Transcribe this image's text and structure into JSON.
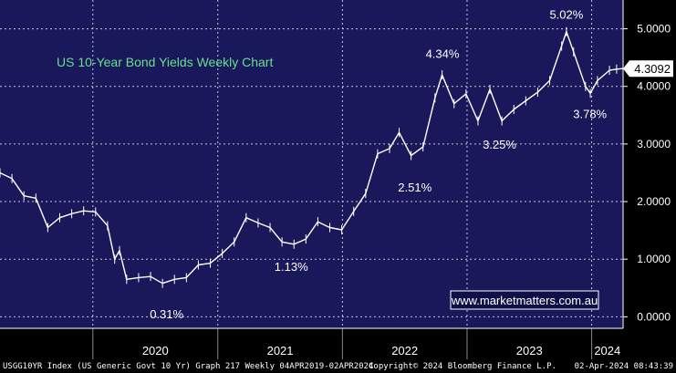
{
  "chart_data": {
    "type": "line",
    "title": "US 10-Year Bond Yields Weekly Chart",
    "watermark": "www.marketmatters.com.au",
    "footer": {
      "left": "USGG10YR Index (US Generic Govt 10 Yr) Graph 217  Weekly 04APR2019-02APR2024",
      "center": "Copyright© 2024 Bloomberg Finance L.P.",
      "right": "02-Apr-2024 08:43:39"
    },
    "last_value": {
      "label": "4.3092",
      "value": 4.3092
    },
    "y_ticks": [
      {
        "value": 0,
        "label": "0.0000"
      },
      {
        "value": 1,
        "label": "1.0000"
      },
      {
        "value": 2,
        "label": "2.0000"
      },
      {
        "value": 3,
        "label": "3.0000"
      },
      {
        "value": 4,
        "label": "4.0000"
      },
      {
        "value": 5,
        "label": "5.0000"
      }
    ],
    "ylim": [
      -0.2,
      5.5
    ],
    "xlim": [
      "2019-04-04",
      "2024-04-02"
    ],
    "x_years": [
      {
        "label": "2020",
        "start": "2020-01-01",
        "end": "2021-01-01"
      },
      {
        "label": "2021",
        "start": "2021-01-01",
        "end": "2022-01-01"
      },
      {
        "label": "2022",
        "start": "2022-01-01",
        "end": "2023-01-01"
      },
      {
        "label": "2023",
        "start": "2023-01-01",
        "end": "2024-01-01"
      },
      {
        "label": "2024",
        "start": "2024-01-01",
        "end": "2024-04-02"
      }
    ],
    "annotations": [
      {
        "date": "2020-08-04",
        "value": 0.31,
        "label": "0.31%",
        "position": "below"
      },
      {
        "date": "2021-08-04",
        "value": 1.13,
        "label": "1.13%",
        "position": "below"
      },
      {
        "date": "2022-08-01",
        "value": 2.51,
        "label": "2.51%",
        "position": "below"
      },
      {
        "date": "2022-10-21",
        "value": 4.34,
        "label": "4.34%",
        "position": "above"
      },
      {
        "date": "2023-04-06",
        "value": 3.25,
        "label": "3.25%",
        "position": "below"
      },
      {
        "date": "2023-10-19",
        "value": 5.02,
        "label": "5.02%",
        "position": "above"
      },
      {
        "date": "2023-12-27",
        "value": 3.78,
        "label": "3.78%",
        "position": "below"
      }
    ],
    "grid": true,
    "series": [
      {
        "x": [
          "2019-04-04",
          "2019-05-09",
          "2019-06-13",
          "2019-07-18",
          "2019-08-22",
          "2019-09-26",
          "2019-10-31",
          "2019-12-05",
          "2020-01-09",
          "2020-02-13",
          "2020-03-05",
          "2020-03-19",
          "2020-04-09",
          "2020-05-14",
          "2020-06-18",
          "2020-07-23",
          "2020-08-27",
          "2020-10-01",
          "2020-11-05",
          "2020-12-10",
          "2021-01-14",
          "2021-02-18",
          "2021-03-25",
          "2021-04-29",
          "2021-06-03",
          "2021-07-08",
          "2021-08-12",
          "2021-09-16",
          "2021-10-21",
          "2021-11-25",
          "2021-12-30",
          "2022-02-03",
          "2022-03-10",
          "2022-04-14",
          "2022-05-19",
          "2022-06-16",
          "2022-07-21",
          "2022-08-25",
          "2022-09-29",
          "2022-10-20",
          "2022-11-24",
          "2022-12-29",
          "2023-02-02",
          "2023-03-09",
          "2023-04-13",
          "2023-05-18",
          "2023-06-22",
          "2023-07-27",
          "2023-08-31",
          "2023-10-05",
          "2023-10-19",
          "2023-11-09",
          "2023-12-14",
          "2023-12-28",
          "2024-01-18",
          "2024-02-22",
          "2024-03-14",
          "2024-04-02"
        ],
        "values": [
          2.5,
          2.4,
          2.1,
          2.06,
          1.55,
          1.72,
          1.79,
          1.84,
          1.82,
          1.58,
          1.0,
          1.15,
          0.65,
          0.68,
          0.7,
          0.58,
          0.65,
          0.68,
          0.9,
          0.93,
          1.1,
          1.3,
          1.72,
          1.63,
          1.55,
          1.3,
          1.26,
          1.35,
          1.65,
          1.55,
          1.51,
          1.83,
          2.14,
          2.83,
          2.92,
          3.2,
          2.8,
          2.95,
          3.8,
          4.2,
          3.7,
          3.87,
          3.4,
          3.95,
          3.4,
          3.6,
          3.75,
          3.9,
          4.1,
          4.7,
          4.95,
          4.6,
          4.0,
          3.88,
          4.1,
          4.28,
          4.3,
          4.31
        ]
      }
    ]
  }
}
